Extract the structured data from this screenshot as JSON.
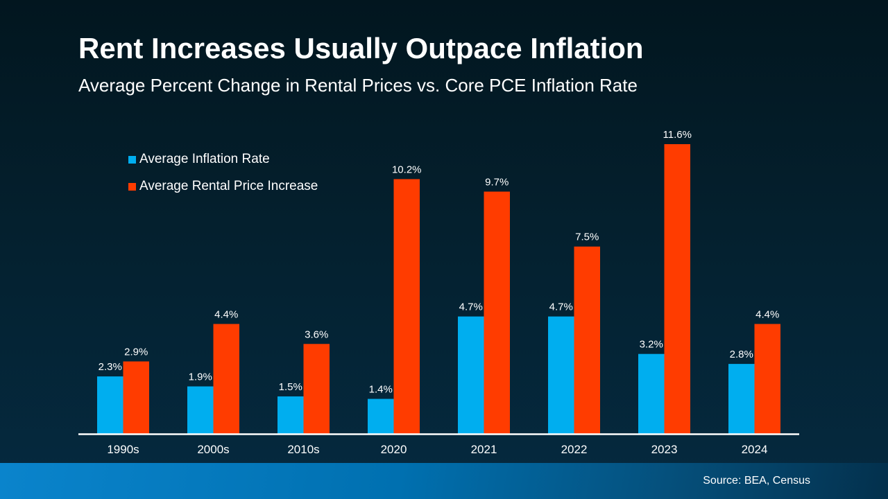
{
  "title": "Rent Increases Usually Outpace Inflation",
  "subtitle": "Average Percent Change in Rental Prices vs. Core PCE Inflation Rate",
  "source": "Source: BEA, Census",
  "chart_data": {
    "type": "bar",
    "categories": [
      "1990s",
      "2000s",
      "2010s",
      "2020",
      "2021",
      "2022",
      "2023",
      "2024"
    ],
    "series": [
      {
        "name": "Average Inflation Rate",
        "color": "#00aeef",
        "values": [
          2.3,
          1.9,
          1.5,
          1.4,
          4.7,
          4.7,
          3.2,
          2.8
        ],
        "labels": [
          "2.3%",
          "1.9%",
          "1.5%",
          "1.4%",
          "4.7%",
          "4.7%",
          "3.2%",
          "2.8%"
        ]
      },
      {
        "name": "Average Rental Price Increase",
        "color": "#ff3c00",
        "values": [
          2.9,
          4.4,
          3.6,
          10.2,
          9.7,
          7.5,
          11.6,
          4.4
        ],
        "labels": [
          "2.9%",
          "4.4%",
          "3.6%",
          "10.2%",
          "9.7%",
          "7.5%",
          "11.6%",
          "4.4%"
        ]
      }
    ],
    "ylim": [
      0,
      11.6
    ],
    "legend": "top-left",
    "grid": false
  }
}
